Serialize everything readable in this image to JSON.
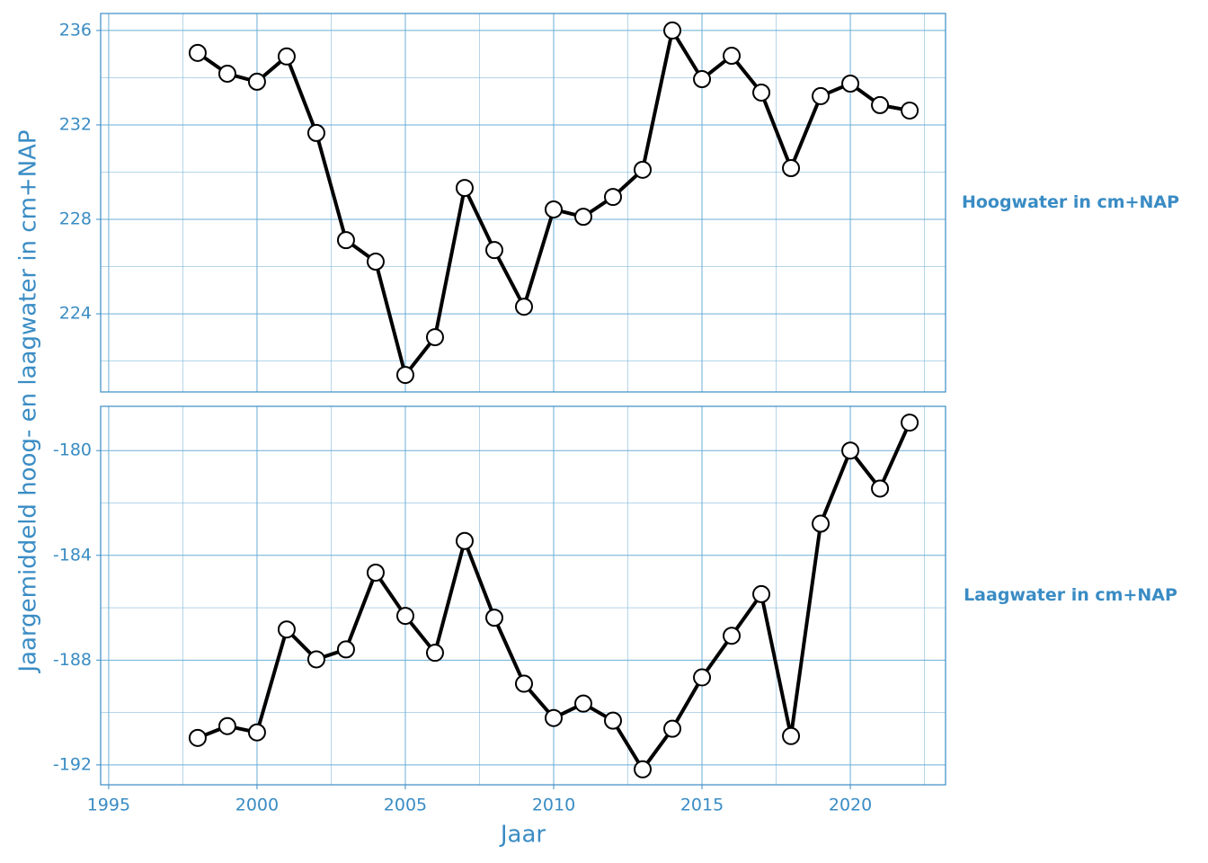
{
  "chart_data": {
    "type": "line",
    "x_label": "Jaar",
    "y_label": "Jaargemiddeld hoog- en laagwater in cm+NAP",
    "color": "#000000",
    "grid": true,
    "x": [
      1998,
      1999,
      2000,
      2001,
      2002,
      2003,
      2004,
      2005,
      2006,
      2007,
      2008,
      2009,
      2010,
      2011,
      2012,
      2013,
      2014,
      2015,
      2016,
      2017,
      2018,
      2019,
      2020,
      2021,
      2022
    ],
    "xlim": [
      1994.73,
      2023.21
    ],
    "xticks": [
      1995,
      2000,
      2005,
      2010,
      2015,
      2020
    ],
    "panels": [
      {
        "strip": "Hoogwater in cm+NAP",
        "values": [
          235.05,
          234.17,
          233.83,
          234.9,
          231.66,
          227.12,
          226.21,
          221.41,
          223.01,
          229.33,
          226.7,
          224.3,
          228.42,
          228.11,
          228.95,
          230.1,
          236.0,
          233.94,
          234.93,
          233.37,
          230.17,
          233.22,
          233.75,
          232.84,
          232.61
        ],
        "ylim": [
          220.69,
          236.72
        ],
        "yticks": [
          224,
          228,
          232,
          236
        ]
      },
      {
        "strip": "Laagwater in cm+NAP",
        "values": [
          -190.97,
          -190.52,
          -190.76,
          -186.83,
          -187.97,
          -187.59,
          -184.66,
          -186.31,
          -187.72,
          -183.45,
          -186.38,
          -188.9,
          -190.21,
          -189.66,
          -190.31,
          -192.17,
          -190.62,
          -188.66,
          -187.07,
          -185.48,
          -190.9,
          -182.79,
          -180.0,
          -181.45,
          -178.93
        ],
        "ylim": [
          -192.76,
          -178.31
        ],
        "yticks": [
          -192,
          -188,
          -184,
          -180
        ]
      }
    ]
  }
}
